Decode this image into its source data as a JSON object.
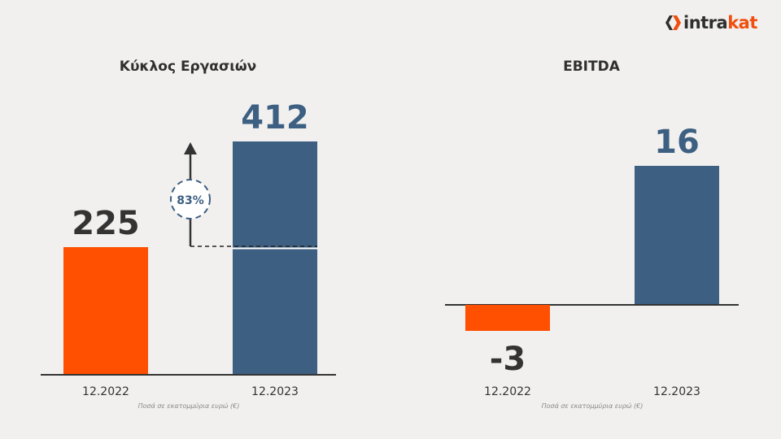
{
  "logo": {
    "part1": "intra",
    "part2": "kat"
  },
  "chart_data": [
    {
      "type": "bar",
      "title": "Κύκλος Εργασιών",
      "categories": [
        "12.2022",
        "12.2023"
      ],
      "values": [
        225,
        412
      ],
      "colors": [
        "#ff4f00",
        "#3d5f82"
      ],
      "annotation": "83%",
      "note": "Ποσά σε εκατομμύρια ευρώ (€)"
    },
    {
      "type": "bar",
      "title": "EBITDA",
      "categories": [
        "12.2022",
        "12.2023"
      ],
      "values": [
        -3,
        16
      ],
      "colors": [
        "#ff4f00",
        "#3d5f82"
      ],
      "note": "Ποσά σε εκατομμύρια ευρώ (€)"
    }
  ]
}
